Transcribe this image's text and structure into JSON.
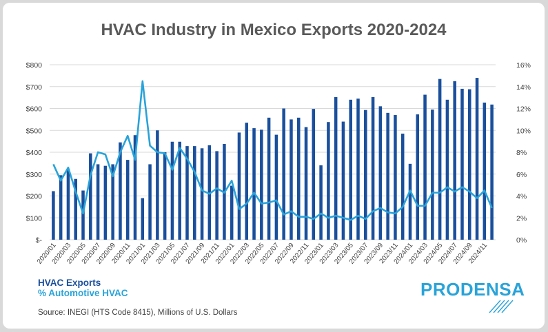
{
  "title": "HVAC Industry in Mexico Exports 2020-2024",
  "legend": {
    "exports": "HVAC Exports",
    "pct": "% Automotive HVAC"
  },
  "source": "Source: INEGI (HTS Code 8415), Millions of U.S. Dollars",
  "brand": "PRODENSA",
  "colors": {
    "bars": "#1a4f9c",
    "line": "#29a3d9",
    "grid": "#d9d9d9",
    "axis_text": "#404040",
    "background": "#ffffff"
  },
  "chart_data": {
    "type": "bar",
    "combo_with": "line",
    "grid": true,
    "legend_position": "bottom-left",
    "x_tick_labels": [
      "2020/01",
      "2020/03",
      "2020/05",
      "2020/07",
      "2020/09",
      "2020/11",
      "2021/01",
      "2021/03",
      "2021/05",
      "2021/07",
      "2021/09",
      "2021/11",
      "2022/01",
      "2022/03",
      "2022/05",
      "2022/07",
      "2022/09",
      "2022/11",
      "2023/01",
      "2023/03",
      "2023/05",
      "2023/07",
      "2023/09",
      "2023/11",
      "2024/01",
      "2024/03",
      "2024/05",
      "2024/07",
      "2024/09",
      "2024/11"
    ],
    "y_left": {
      "ticks": [
        "$-",
        "$100",
        "$200",
        "$300",
        "$400",
        "$500",
        "$600",
        "$700",
        "$800"
      ],
      "ylim": [
        0,
        800
      ]
    },
    "y_right": {
      "ticks": [
        "0%",
        "2%",
        "4%",
        "6%",
        "8%",
        "10%",
        "12%",
        "14%",
        "16%"
      ],
      "ylim": [
        0,
        16
      ]
    },
    "series": [
      {
        "name": "HVAC Exports",
        "type": "bar",
        "axis": "left",
        "values": [
          222,
          295,
          322,
          278,
          225,
          395,
          345,
          338,
          345,
          445,
          365,
          478,
          190,
          345,
          500,
          400,
          448,
          448,
          428,
          428,
          418,
          432,
          405,
          438,
          247,
          490,
          535,
          510,
          503,
          558,
          480,
          600,
          550,
          558,
          515,
          598,
          340,
          538,
          652,
          540,
          640,
          645,
          593,
          652,
          610,
          580,
          570,
          485,
          347,
          573,
          663,
          595,
          735,
          640,
          725,
          690,
          688,
          740,
          627,
          618
        ]
      },
      {
        "name": "% Automotive HVAC",
        "type": "line",
        "axis": "right",
        "values": [
          6.9,
          5.4,
          6.6,
          4.4,
          2.4,
          5.9,
          8.0,
          7.8,
          5.8,
          8.0,
          9.5,
          7.3,
          14.5,
          8.6,
          8.0,
          7.9,
          6.4,
          8.4,
          7.4,
          6.2,
          4.5,
          4.2,
          4.7,
          4.3,
          5.4,
          2.8,
          3.3,
          4.3,
          3.3,
          3.4,
          3.6,
          2.3,
          2.6,
          2.1,
          2.1,
          1.9,
          2.4,
          2.0,
          2.2,
          2.0,
          1.8,
          2.2,
          1.9,
          2.6,
          2.9,
          2.5,
          2.4,
          3.0,
          4.5,
          3.1,
          3.1,
          4.3,
          4.3,
          4.8,
          4.4,
          4.8,
          4.4,
          3.8,
          4.5,
          2.9
        ]
      }
    ]
  }
}
